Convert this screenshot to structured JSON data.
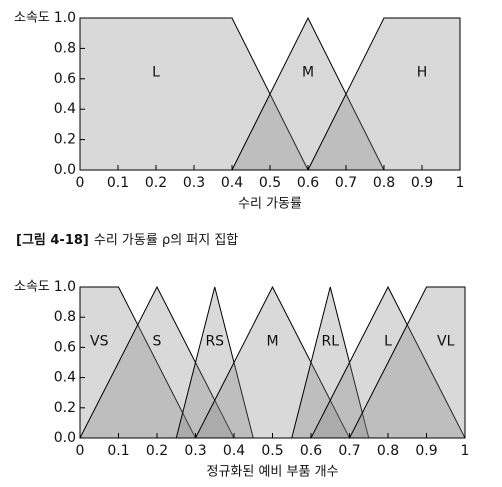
{
  "chart_data": [
    {
      "type": "area",
      "y_label": "소속도",
      "x_label": "수리 가동률",
      "xlim": [
        0,
        1
      ],
      "ylim": [
        0,
        1
      ],
      "xticks": [
        0,
        0.1,
        0.2,
        0.3,
        0.4,
        0.5,
        0.6,
        0.7,
        0.8,
        0.9,
        1
      ],
      "yticks": [
        {
          "value": 0,
          "label": "0.0"
        },
        0.2,
        0.4,
        0.6,
        0.8,
        {
          "value": 1,
          "label": "1.0"
        }
      ],
      "series": [
        {
          "name": "L",
          "color": "#808080",
          "x": [
            0,
            0,
            0.4,
            0.6
          ],
          "values": [
            0,
            1,
            1,
            0
          ]
        },
        {
          "name": "M",
          "color": "#808080",
          "x": [
            0.4,
            0.6,
            0.8
          ],
          "values": [
            0,
            1,
            0
          ]
        },
        {
          "name": "H",
          "color": "#808080",
          "x": [
            0.6,
            0.8,
            1,
            1
          ],
          "values": [
            0,
            1,
            1,
            0
          ]
        }
      ]
    },
    {
      "type": "area",
      "y_label": "소속도",
      "x_label": "정규화된 예비 부품 개수",
      "xlim": [
        0,
        1
      ],
      "ylim": [
        0,
        1
      ],
      "xticks": [
        0,
        0.1,
        0.2,
        0.3,
        0.4,
        0.5,
        0.6,
        0.7,
        0.8,
        0.9,
        1
      ],
      "yticks": [
        {
          "value": 0,
          "label": "0.0"
        },
        0.2,
        0.4,
        0.6,
        0.8,
        {
          "value": 1,
          "label": "1.0"
        }
      ],
      "series": [
        {
          "name": "VS",
          "color": "#808080",
          "x": [
            0,
            0,
            0.1,
            0.3
          ],
          "values": [
            0,
            1,
            1,
            0
          ]
        },
        {
          "name": "S",
          "color": "#808080",
          "x": [
            0,
            0.2,
            0.4
          ],
          "values": [
            0,
            1,
            0
          ]
        },
        {
          "name": "RS",
          "color": "#808080",
          "x": [
            0.25,
            0.35,
            0.45
          ],
          "values": [
            0,
            1,
            0
          ]
        },
        {
          "name": "M",
          "color": "#808080",
          "x": [
            0.3,
            0.5,
            0.7
          ],
          "values": [
            0,
            1,
            0
          ]
        },
        {
          "name": "RL",
          "color": "#808080",
          "x": [
            0.55,
            0.65,
            0.75
          ],
          "values": [
            0,
            1,
            0
          ]
        },
        {
          "name": "L",
          "color": "#808080",
          "x": [
            0.6,
            0.8,
            1
          ],
          "values": [
            0,
            1,
            0
          ]
        },
        {
          "name": "VL",
          "color": "#808080",
          "x": [
            0.7,
            0.9,
            1,
            1
          ],
          "values": [
            0,
            1,
            1,
            0
          ]
        }
      ]
    }
  ],
  "caption_label": "[그림 4-18]",
  "caption_text": "수리 가동률 ρ의 퍼지 집합"
}
